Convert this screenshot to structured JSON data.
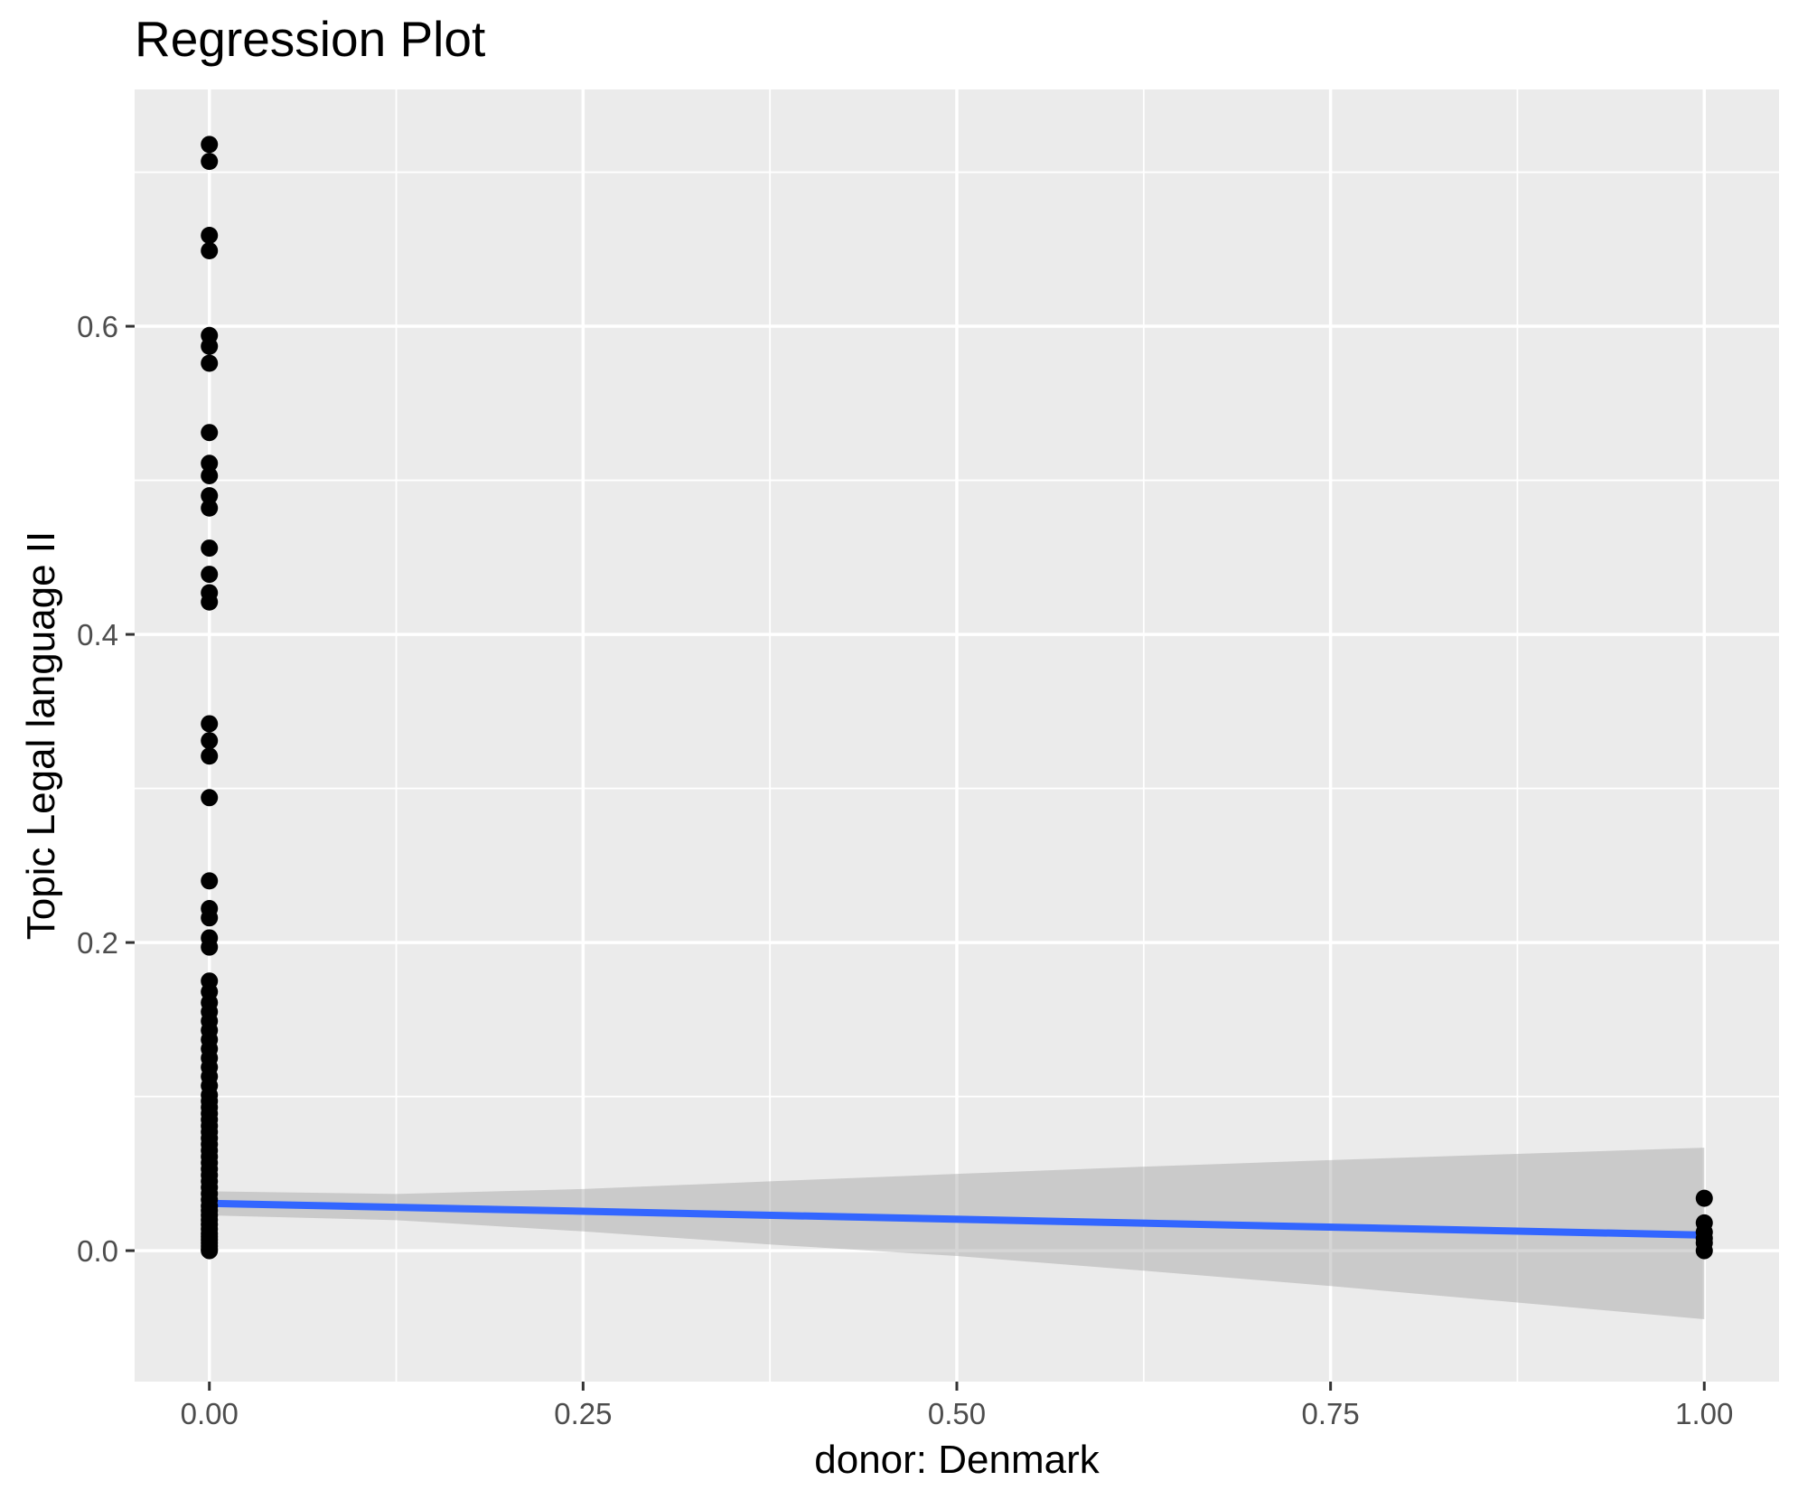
{
  "chart_data": {
    "type": "scatter",
    "title": "Regression Plot",
    "xlabel": "donor: Denmark",
    "ylabel": "Topic Legal language II",
    "xlim": [
      -0.05,
      1.05
    ],
    "ylim": [
      -0.085,
      0.7537
    ],
    "grid": true,
    "legend": "none",
    "x_ticks": [
      {
        "v": 0.0,
        "label": "0.00"
      },
      {
        "v": 0.25,
        "label": "0.25"
      },
      {
        "v": 0.5,
        "label": "0.50"
      },
      {
        "v": 0.75,
        "label": "0.75"
      },
      {
        "v": 1.0,
        "label": "1.00"
      }
    ],
    "y_ticks": [
      {
        "v": 0.0,
        "label": "0.0"
      },
      {
        "v": 0.2,
        "label": "0.2"
      },
      {
        "v": 0.4,
        "label": "0.4"
      },
      {
        "v": 0.6,
        "label": "0.6"
      }
    ],
    "x_minor": [
      0.125,
      0.375,
      0.625,
      0.875
    ],
    "y_minor": [
      0.1,
      0.3,
      0.5,
      0.7
    ],
    "series": [
      {
        "name": "observations",
        "x_groups": [
          {
            "x": 0,
            "ys": [
              0.718,
              0.707,
              0.659,
              0.649,
              0.594,
              0.587,
              0.576,
              0.531,
              0.511,
              0.503,
              0.49,
              0.482,
              0.456,
              0.439,
              0.427,
              0.421,
              0.342,
              0.331,
              0.321,
              0.294,
              0.24,
              0.222,
              0.216,
              0.203,
              0.197,
              0.175,
              0.168,
              0.161,
              0.155,
              0.149,
              0.143,
              0.137,
              0.131,
              0.125,
              0.119,
              0.113,
              0.107,
              0.101,
              0.097,
              0.093,
              0.089,
              0.085,
              0.081,
              0.077,
              0.073,
              0.069,
              0.065,
              0.061,
              0.057,
              0.053,
              0.049,
              0.045,
              0.041,
              0.037,
              0.033,
              0.029,
              0.026,
              0.023,
              0.02,
              0.017,
              0.014,
              0.011,
              0.009,
              0.007,
              0.005,
              0.003,
              0.001,
              0.0
            ]
          },
          {
            "x": 1,
            "ys": [
              0.034,
              0.018,
              0.012,
              0.008,
              0.005,
              0.0
            ]
          }
        ]
      }
    ],
    "regression_line": {
      "x": [
        0,
        1
      ],
      "y": [
        0.0307,
        0.0101
      ]
    },
    "ci_band": {
      "x": [
        0.0,
        0.125,
        0.25,
        0.375,
        0.5,
        0.625,
        0.75,
        0.875,
        1.0
      ],
      "upper": [
        0.0385,
        0.0368,
        0.04,
        0.045,
        0.0498,
        0.0545,
        0.0588,
        0.0628,
        0.0668
      ],
      "lower": [
        0.0229,
        0.0198,
        0.0125,
        0.004,
        -0.0035,
        -0.013,
        -0.023,
        -0.0337,
        -0.0445
      ]
    },
    "style": {
      "panel_bg": "#EBEBEB",
      "grid_color": "#FFFFFF",
      "point_color": "#000000",
      "line_color": "#3366FF",
      "band_color": "#999999",
      "band_opacity": 0.4,
      "tick_label_color": "#4D4D4D",
      "tick_color": "#333333",
      "axis_title_color": "#000000",
      "title_color": "#000000"
    }
  }
}
